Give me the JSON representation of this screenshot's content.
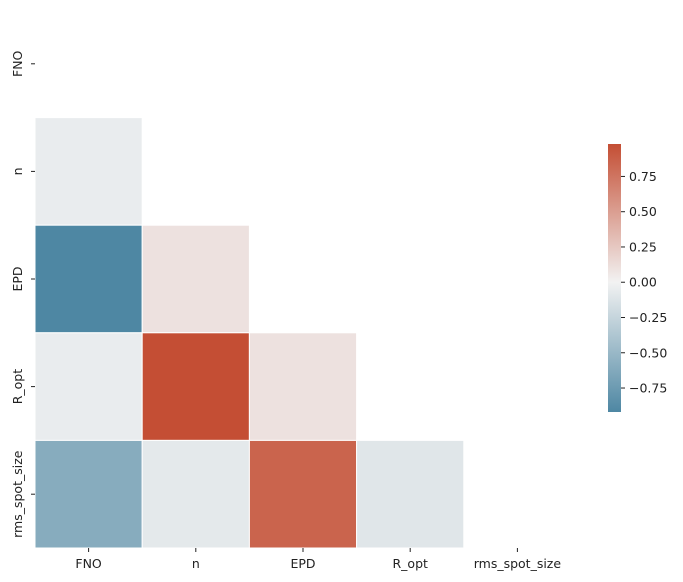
{
  "chart_data": {
    "type": "heatmap",
    "title": "",
    "xlabel": "",
    "ylabel": "",
    "mask": "upper-triangle-including-diagonal",
    "x_categories": [
      "FNO",
      "n",
      "EPD",
      "R_opt",
      "rms_spot_size"
    ],
    "y_categories": [
      "FNO",
      "n",
      "EPD",
      "R_opt",
      "rms_spot_size"
    ],
    "values": [
      [
        null,
        null,
        null,
        null,
        null
      ],
      [
        -0.05,
        null,
        null,
        null,
        null
      ],
      [
        -0.92,
        0.1,
        null,
        null,
        null
      ],
      [
        -0.05,
        0.98,
        0.1,
        null,
        null
      ],
      [
        -0.6,
        -0.08,
        0.85,
        -0.1,
        null
      ]
    ],
    "colorbar": {
      "range": [
        -0.92,
        0.98
      ],
      "ticks": [
        "0.75",
        "0.50",
        "0.25",
        "0.00",
        "−0.25",
        "−0.50",
        "−0.75"
      ],
      "tick_values": [
        0.75,
        0.5,
        0.25,
        0.0,
        -0.25,
        -0.5,
        -0.75
      ],
      "low_color": "#4e87a3",
      "mid_color": "#f2f2f2",
      "high_color": "#c44e34"
    }
  }
}
